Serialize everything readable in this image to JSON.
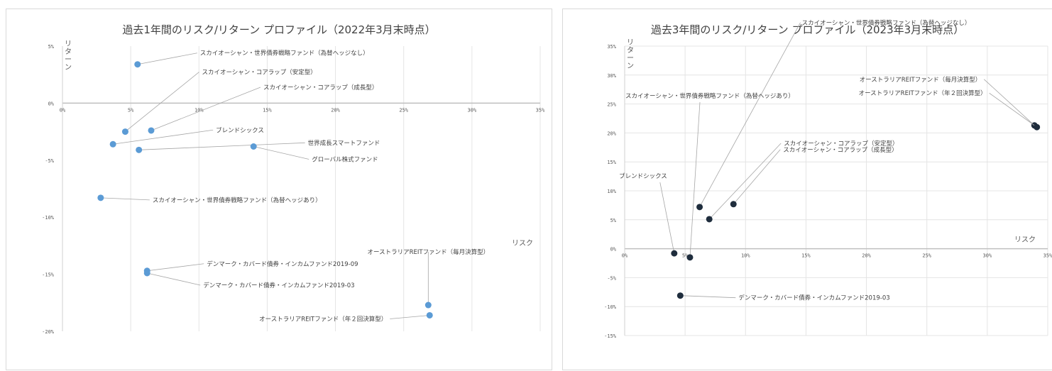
{
  "charts": [
    {
      "type": "scatter",
      "title": "過去1年間のリスク/リターン プロファイル（2022年3月末時点）",
      "xlabel": "リスク",
      "ylabel": "リターン",
      "xlim": [
        0,
        35
      ],
      "ylim": [
        -20,
        5
      ],
      "xticks": [
        "0%",
        "5%",
        "10%",
        "15%",
        "20%",
        "25%",
        "30%",
        "35%"
      ],
      "yticks": [
        "5%",
        "0%",
        "-5%",
        "-10%",
        "-15%",
        "-20%"
      ],
      "grid": "vertical",
      "marker_color": "#5b9bd5",
      "points": [
        {
          "name": "スカイオーシャン・世界債券戦略ファンド（為替ヘッジなし）",
          "x": 5.5,
          "y": 3.4
        },
        {
          "name": "スカイオーシャン・コアラップ（安定型）",
          "x": 4.6,
          "y": -2.5
        },
        {
          "name": "スカイオーシャン・コアラップ（成長型）",
          "x": 6.5,
          "y": -2.4
        },
        {
          "name": "ブレンドシックス",
          "x": 3.7,
          "y": -3.6
        },
        {
          "name": "世界成長スマートファンド",
          "x": 5.6,
          "y": -4.1
        },
        {
          "name": "グローバル株式ファンド",
          "x": 14.0,
          "y": -3.8
        },
        {
          "name": "スカイオーシャン・世界債券戦略ファンド（為替ヘッジあり）",
          "x": 2.8,
          "y": -8.3
        },
        {
          "name": "デンマーク・カバード債券・インカムファンド2019-09",
          "x": 6.2,
          "y": -14.7
        },
        {
          "name": "デンマーク・カバード債券・インカムファンド2019-03",
          "x": 6.2,
          "y": -14.9
        },
        {
          "name": "オーストラリアREITファンド（毎月決算型）",
          "x": 26.8,
          "y": -17.7
        },
        {
          "name": "オーストラリアREITファンド（年２回決算型）",
          "x": 26.9,
          "y": -18.6
        }
      ]
    },
    {
      "type": "scatter",
      "title": "過去3年間のリスク/リターン プロファイル（2023年3月末時点）",
      "xlabel": "リスク",
      "ylabel": "リターン",
      "xlim": [
        0,
        35
      ],
      "ylim": [
        -15,
        35
      ],
      "xticks": [
        "0%",
        "5%",
        "10%",
        "15%",
        "20%",
        "25%",
        "30%",
        "35%"
      ],
      "yticks": [
        "35%",
        "30%",
        "25%",
        "20%",
        "15%",
        "10%",
        "5%",
        "0%",
        "-5%",
        "-10%",
        "-15%"
      ],
      "grid": "both",
      "marker_color": "#1f2d3d",
      "points": [
        {
          "name": "スカイオーシャン・世界債券戦略ファンド（為替ヘッジなし）",
          "x": 6.2,
          "y": 7.2
        },
        {
          "name": "スカイオーシャン・世界債券戦略ファンド（為替ヘッジあり）",
          "x": 5.4,
          "y": -1.5
        },
        {
          "name": "オーストラリアREITファンド（毎月決算型）",
          "x": 33.9,
          "y": 21.3
        },
        {
          "name": "オーストラリアREITファンド（年２回決算型）",
          "x": 34.1,
          "y": 21.0
        },
        {
          "name": "スカイオーシャン・コアラップ（安定型）",
          "x": 7.0,
          "y": 5.1
        },
        {
          "name": "スカイオーシャン・コアラップ（成長型）",
          "x": 9.0,
          "y": 7.7
        },
        {
          "name": "ブレンドシックス",
          "x": 4.1,
          "y": -0.8
        },
        {
          "name": "デンマーク・カバード債券・インカムファンド2019-03",
          "x": 4.6,
          "y": -8.1
        }
      ]
    }
  ]
}
